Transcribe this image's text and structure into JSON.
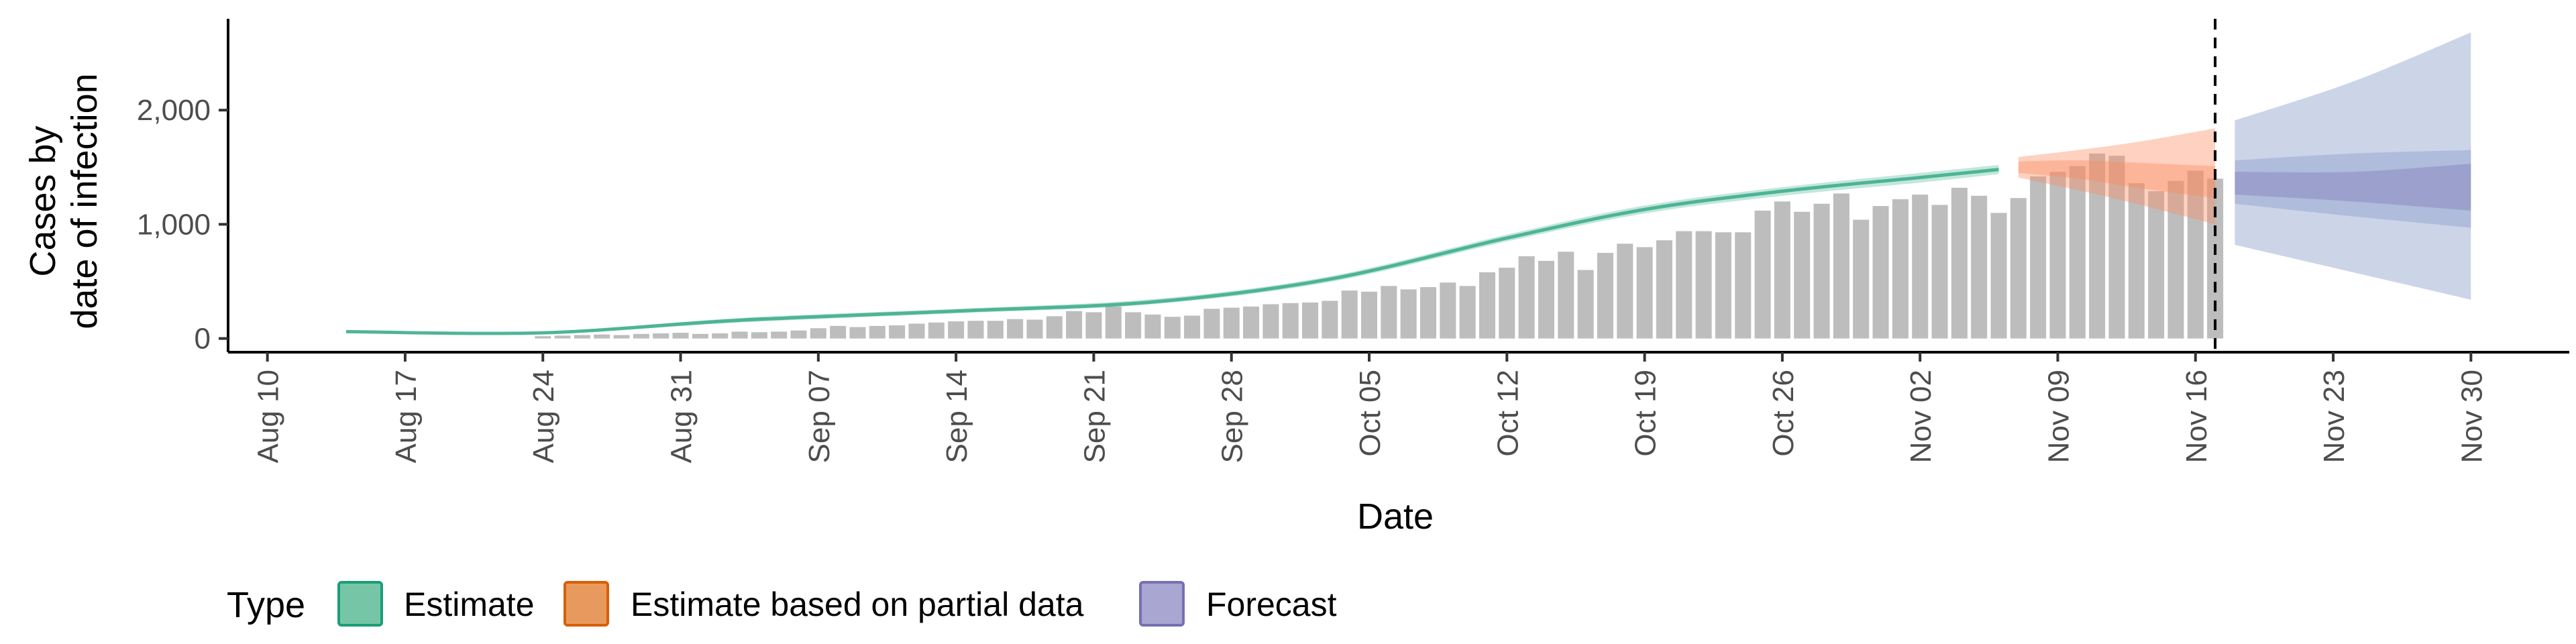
{
  "chart_data": {
    "type": "bar",
    "xlabel": "Date",
    "ylabel_lines": [
      "Cases by",
      "date of infection"
    ],
    "ylim": [
      -120,
      2800
    ],
    "xlim": [
      "2020-08-08",
      "2020-12-05"
    ],
    "y_ticks": [
      0,
      1000,
      2000
    ],
    "y_tick_labels": [
      "0",
      "1,000",
      "2,000"
    ],
    "x_ticks": [
      "2020-08-10",
      "2020-08-17",
      "2020-08-24",
      "2020-08-31",
      "2020-09-07",
      "2020-09-14",
      "2020-09-21",
      "2020-09-28",
      "2020-10-05",
      "2020-10-12",
      "2020-10-19",
      "2020-10-26",
      "2020-11-02",
      "2020-11-09",
      "2020-11-16",
      "2020-11-23",
      "2020-11-30"
    ],
    "x_tick_labels": [
      "Aug 10",
      "Aug 17",
      "Aug 24",
      "Aug 31",
      "Sep 07",
      "Sep 14",
      "Sep 21",
      "Sep 28",
      "Oct 05",
      "Oct 12",
      "Oct 19",
      "Oct 26",
      "Nov 02",
      "Nov 09",
      "Nov 16",
      "Nov 23",
      "Nov 30"
    ],
    "grid": false,
    "vline_date": "2020-11-17",
    "bars": {
      "start_date": "2020-08-24",
      "color": "#bdbdbd",
      "values": [
        20,
        25,
        30,
        35,
        30,
        40,
        45,
        50,
        40,
        45,
        60,
        55,
        60,
        70,
        90,
        110,
        100,
        110,
        115,
        130,
        140,
        150,
        155,
        155,
        170,
        165,
        195,
        240,
        230,
        280,
        230,
        210,
        190,
        200,
        260,
        270,
        280,
        300,
        310,
        315,
        330,
        420,
        410,
        460,
        430,
        450,
        490,
        460,
        580,
        620,
        720,
        680,
        760,
        600,
        750,
        830,
        800,
        860,
        940,
        940,
        930,
        930,
        1120,
        1200,
        1110,
        1180,
        1270,
        1040,
        1160,
        1220,
        1260,
        1170,
        1320,
        1250,
        1100,
        1230,
        1420,
        1460,
        1510,
        1620,
        1600,
        1360,
        1290,
        1380,
        1470,
        1400
      ]
    },
    "series": [
      {
        "name": "Estimate",
        "color": "#1b9e77",
        "fill": "#66c2a5",
        "points": [
          [
            "2020-08-14",
            60,
            50,
            70
          ],
          [
            "2020-08-24",
            50,
            40,
            60
          ],
          [
            "2020-09-03",
            160,
            140,
            180
          ],
          [
            "2020-09-14",
            240,
            220,
            260
          ],
          [
            "2020-09-24",
            320,
            300,
            345
          ],
          [
            "2020-10-03",
            520,
            495,
            545
          ],
          [
            "2020-10-12",
            880,
            850,
            910
          ],
          [
            "2020-10-19",
            1130,
            1095,
            1165
          ],
          [
            "2020-10-26",
            1290,
            1250,
            1325
          ],
          [
            "2020-11-02",
            1410,
            1365,
            1450
          ],
          [
            "2020-11-06",
            1480,
            1440,
            1520
          ]
        ]
      },
      {
        "name": "Estimate based on partial data",
        "color": "#d95f02",
        "fill": "#fc8d62",
        "points": [
          [
            "2020-11-07",
            1500,
            1410,
            1590,
            1450,
            1550
          ],
          [
            "2020-11-10",
            1480,
            1300,
            1650,
            1400,
            1560
          ],
          [
            "2020-11-13",
            1420,
            1180,
            1720,
            1320,
            1540
          ],
          [
            "2020-11-17",
            1370,
            1000,
            1840,
            1230,
            1510
          ]
        ]
      },
      {
        "name": "Forecast",
        "color": "#7570b3",
        "fill": "#8da0cb",
        "points": [
          [
            "2020-11-18",
            1360,
            820,
            1910,
            1180,
            1560,
            1260,
            1460
          ],
          [
            "2020-11-24",
            1330,
            580,
            2250,
            1070,
            1620,
            1200,
            1460
          ],
          [
            "2020-11-30",
            1320,
            340,
            2680,
            970,
            1650,
            1120,
            1530
          ]
        ]
      }
    ],
    "legend": {
      "position": "bottom",
      "title": "Type",
      "entries": [
        {
          "label": "Estimate",
          "fill": "#76c5a7",
          "stroke": "#1b9e77"
        },
        {
          "label": "Estimate based on partial data",
          "fill": "#e89a5e",
          "stroke": "#d95f02"
        },
        {
          "label": "Forecast",
          "fill": "#a9a6d1",
          "stroke": "#7570b3"
        }
      ]
    }
  }
}
